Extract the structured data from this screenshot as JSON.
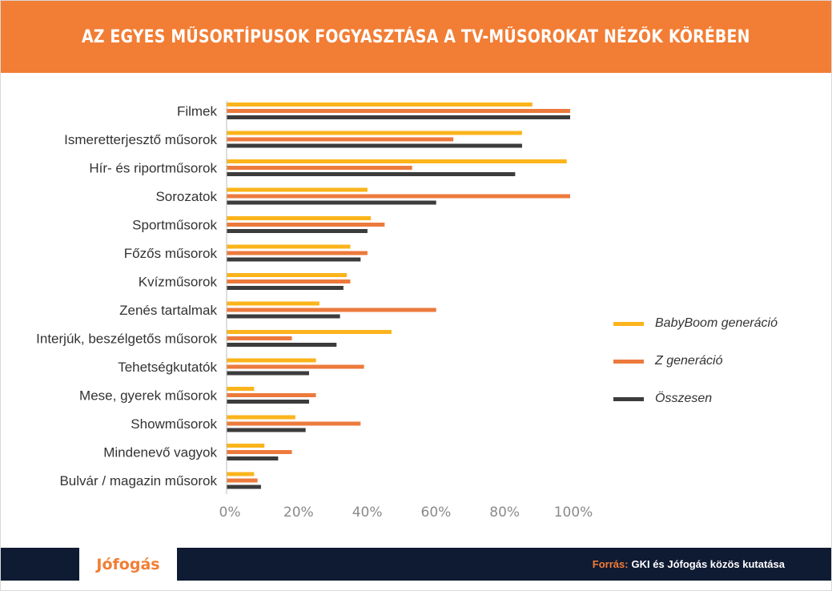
{
  "header": {
    "title": "AZ EGYES MŰSORTÍPUSOK FOGYASZTÁSA A TV-MŰSOROKAT NÉZŐK KÖRÉBEN"
  },
  "chart_data": {
    "type": "bar",
    "orientation": "horizontal",
    "title": "AZ EGYES MŰSORTÍPUSOK FOGYASZTÁSA A TV-MŰSOROKAT NÉZŐK KÖRÉBEN",
    "categories": [
      "Filmek",
      "Ismeretterjesztő műsorok",
      "Hír- és riportműsorok",
      "Sorozatok",
      "Sportműsorok",
      "Főzős műsorok",
      "Kvízműsorok",
      "Zenés tartalmak",
      "Interjúk, beszélgetős műsorok",
      "Tehetségkutatók",
      "Mese, gyerek műsorok",
      "Showműsorok",
      "Mindenevő vagyok",
      "Bulvár / magazin műsorok"
    ],
    "series": [
      {
        "name": "BabyBoom generáció",
        "color": "#fbb41b",
        "values": [
          89,
          86,
          99,
          41,
          42,
          36,
          35,
          27,
          48,
          26,
          8,
          20,
          11,
          8
        ]
      },
      {
        "name": "Z generáció",
        "color": "#ec7a3c",
        "values": [
          100,
          66,
          54,
          100,
          46,
          41,
          36,
          61,
          19,
          40,
          26,
          39,
          19,
          9
        ]
      },
      {
        "name": "Összesen",
        "color": "#3c3c3c",
        "values": [
          100,
          86,
          84,
          61,
          41,
          39,
          34,
          33,
          32,
          24,
          24,
          23,
          15,
          10
        ]
      }
    ],
    "x_ticks": [
      "0%",
      "20%",
      "40%",
      "60%",
      "80%",
      "100%"
    ],
    "xlim": [
      0,
      100
    ],
    "xlabel": "",
    "ylabel": "",
    "grid": false,
    "legend_position": "right"
  },
  "legend": {
    "items": [
      {
        "label": "BabyBoom generáció",
        "color": "#fbb41b"
      },
      {
        "label": "Z generáció",
        "color": "#ec7a3c"
      },
      {
        "label": "Összesen",
        "color": "#3c3c3c"
      }
    ]
  },
  "footer": {
    "logo": "Jófogás",
    "source_prefix": "Forrás:",
    "source_text": "GKI és Jófogás közös kutatása"
  },
  "colors": {
    "header_bg": "#f27d34",
    "footer_bg": "#0f1a33",
    "accent": "#f27d34"
  }
}
